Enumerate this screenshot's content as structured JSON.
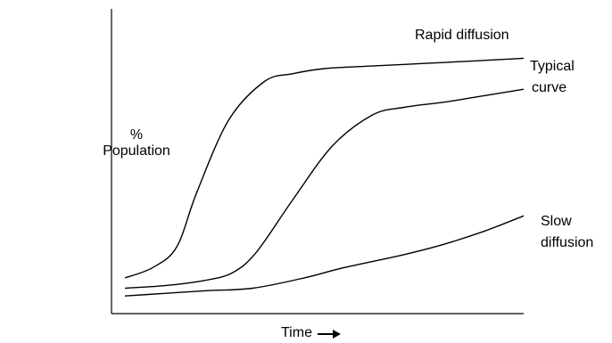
{
  "chart_data": {
    "type": "line",
    "title": "",
    "xlabel": "Time",
    "ylabel_line1": "%",
    "ylabel_line2": "Population",
    "xlim": [
      0,
      100
    ],
    "ylim": [
      0,
      100
    ],
    "grid": false,
    "legend": "none",
    "series": [
      {
        "name": "Rapid diffusion",
        "x": [
          0,
          7,
          13,
          18,
          26,
          35,
          42,
          50,
          62,
          75,
          88,
          100
        ],
        "y": [
          9,
          13,
          21,
          42,
          70,
          85,
          88,
          90,
          91,
          92,
          93,
          94
        ]
      },
      {
        "name": "Typical curve",
        "x": [
          0,
          10,
          20,
          27,
          33,
          42,
          52,
          62,
          70,
          80,
          88,
          100
        ],
        "y": [
          5,
          6,
          8,
          11,
          19,
          39,
          60,
          72,
          75,
          77,
          79,
          82
        ]
      },
      {
        "name": "Slow diffusion",
        "x": [
          0,
          10,
          20,
          32,
          45,
          55,
          70,
          80,
          90,
          100
        ],
        "y": [
          2,
          3,
          4,
          5,
          9,
          13,
          18,
          22,
          27,
          33
        ]
      }
    ],
    "annotations": {
      "rapid": [
        "Rapid diffusion"
      ],
      "typical": [
        "Typical",
        "curve"
      ],
      "slow": [
        "Slow",
        "diffusion"
      ]
    }
  }
}
